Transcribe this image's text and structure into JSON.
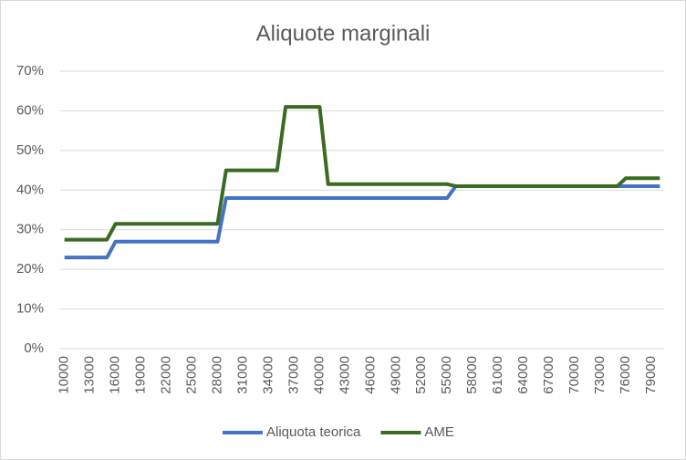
{
  "chart_data": {
    "type": "line",
    "title": "Aliquote marginali",
    "categories": [
      "10000",
      null,
      null,
      "13000",
      null,
      null,
      "16000",
      null,
      null,
      "19000",
      null,
      null,
      "22000",
      null,
      null,
      "25000",
      null,
      null,
      "28000",
      null,
      null,
      "31000",
      null,
      null,
      "34000",
      null,
      null,
      "37000",
      null,
      null,
      "40000",
      null,
      null,
      "43000",
      null,
      null,
      "46000",
      null,
      null,
      "49000",
      null,
      null,
      "52000",
      null,
      null,
      "55000",
      null,
      null,
      "58000",
      null,
      null,
      "61000",
      null,
      null,
      "64000",
      null,
      null,
      "67000",
      null,
      null,
      "70000",
      null,
      null,
      "73000",
      null,
      null,
      "76000",
      null,
      null,
      "79000",
      null
    ],
    "series": [
      {
        "name": "Aliquota teorica",
        "color": "#4472c4",
        "values": [
          23,
          23,
          23,
          23,
          23,
          23,
          27,
          27,
          27,
          27,
          27,
          27,
          27,
          27,
          27,
          27,
          27,
          27,
          27,
          38,
          38,
          38,
          38,
          38,
          38,
          38,
          38,
          38,
          38,
          38,
          38,
          38,
          38,
          38,
          38,
          38,
          38,
          38,
          38,
          38,
          38,
          38,
          38,
          38,
          38,
          38,
          41,
          41,
          41,
          41,
          41,
          41,
          41,
          41,
          41,
          41,
          41,
          41,
          41,
          41,
          41,
          41,
          41,
          41,
          41,
          41,
          41,
          41,
          41,
          41,
          41
        ]
      },
      {
        "name": "AME",
        "color": "#3b6b22",
        "values": [
          27.5,
          27.5,
          27.5,
          27.5,
          27.5,
          27.5,
          31.5,
          31.5,
          31.5,
          31.5,
          31.5,
          31.5,
          31.5,
          31.5,
          31.5,
          31.5,
          31.5,
          31.5,
          31.5,
          45,
          45,
          45,
          45,
          45,
          45,
          45,
          61,
          61,
          61,
          61,
          61,
          41.5,
          41.5,
          41.5,
          41.5,
          41.5,
          41.5,
          41.5,
          41.5,
          41.5,
          41.5,
          41.5,
          41.5,
          41.5,
          41.5,
          41.5,
          41,
          41,
          41,
          41,
          41,
          41,
          41,
          41,
          41,
          41,
          41,
          41,
          41,
          41,
          41,
          41,
          41,
          41,
          41,
          41,
          43,
          43,
          43,
          43,
          43
        ]
      }
    ],
    "ylim": [
      0,
      70
    ],
    "yticks": [
      {
        "value": 0,
        "label": "0%"
      },
      {
        "value": 10,
        "label": "10%"
      },
      {
        "value": 20,
        "label": "20%"
      },
      {
        "value": 30,
        "label": "30%"
      },
      {
        "value": 40,
        "label": "40%"
      },
      {
        "value": 50,
        "label": "50%"
      },
      {
        "value": 60,
        "label": "60%"
      },
      {
        "value": 70,
        "label": "70%"
      }
    ],
    "grid": true,
    "legend": "bottom"
  }
}
